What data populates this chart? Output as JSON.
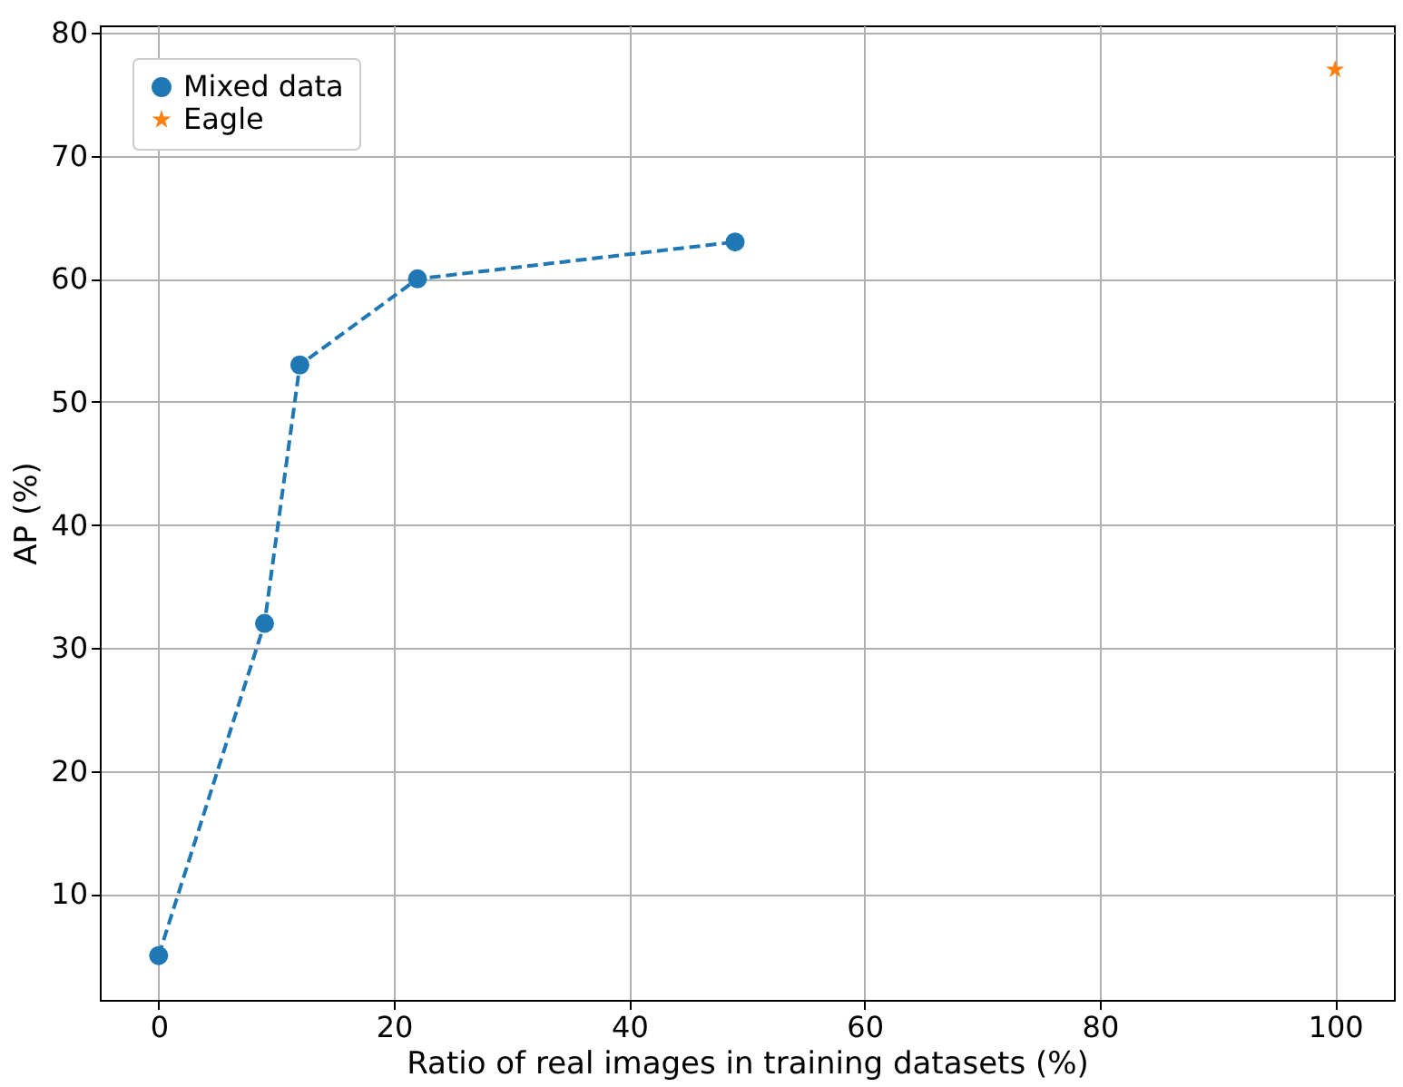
{
  "chart_data": {
    "type": "line",
    "xlabel": "Ratio of real images in training datasets (%)",
    "ylabel": "AP (%)",
    "series": [
      {
        "name": "Mixed data",
        "type": "line",
        "color": "#1f77b4",
        "marker": "circle",
        "line_style": "dashed",
        "x": [
          0,
          9,
          12,
          22,
          49
        ],
        "values": [
          5,
          32,
          53,
          60,
          63
        ]
      },
      {
        "name": "Eagle",
        "type": "scatter",
        "color": "#ff7f0e",
        "marker": "star",
        "x": [
          100
        ],
        "values": [
          77
        ]
      }
    ],
    "xlim": [
      -5,
      105
    ],
    "xticks": [
      0,
      20,
      40,
      60,
      80,
      100
    ],
    "ylim": [
      1.4,
      80.6
    ],
    "yticks": [
      10,
      20,
      30,
      40,
      50,
      60,
      70,
      80
    ],
    "grid": true,
    "legend": "top left"
  }
}
